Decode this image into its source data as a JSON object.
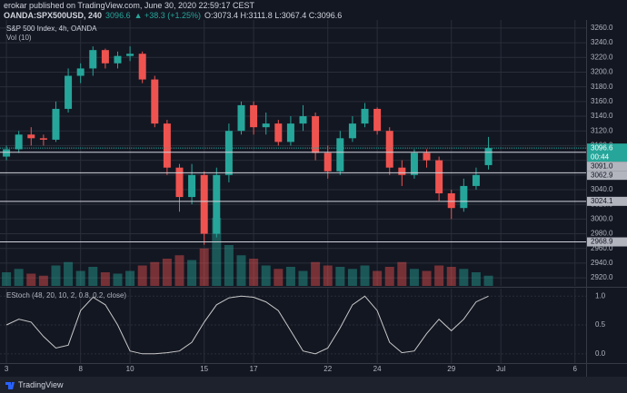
{
  "header": {
    "publisher": "erokar published on TradingView.com, June 30, 2020 22:59:17 CEST",
    "symbol": "OANDA:SPX500USD, 240",
    "change": "▲ +38.3 (+1.25%)",
    "ohlc": "O:3073.4 H:3111.8 L:3067.4 C:3096.6"
  },
  "chart_data": [
    {
      "type": "candlestick",
      "title": "S&P 500 Index, 4h, OANDA",
      "x": [
        0,
        0.5,
        1,
        1.5,
        2,
        2.5,
        3,
        3.5,
        4,
        4.5,
        5,
        5.5,
        6,
        6.5,
        7,
        7.5,
        8,
        8.5,
        9,
        9.5,
        10,
        10.5,
        11,
        11.5,
        12,
        12.5,
        13,
        13.5,
        14,
        14.5,
        15,
        15.5,
        16,
        16.5,
        17,
        17.5,
        18,
        18.5,
        19,
        19.5
      ],
      "open": [
        3085,
        3095,
        3115,
        3110,
        3108,
        3150,
        3195,
        3205,
        3230,
        3212,
        3222,
        3225,
        3190,
        3130,
        3070,
        3030,
        3060,
        2980,
        3060,
        3120,
        3155,
        3125,
        3130,
        3105,
        3130,
        3140,
        3090,
        3065,
        3110,
        3130,
        3150,
        3120,
        3070,
        3060,
        3090,
        3080,
        3035,
        3015,
        3045,
        3073.4
      ],
      "high": [
        3100,
        3120,
        3125,
        3115,
        3160,
        3205,
        3212,
        3235,
        3232,
        3228,
        3235,
        3228,
        3195,
        3135,
        3075,
        3075,
        3065,
        3070,
        3130,
        3160,
        3160,
        3145,
        3135,
        3140,
        3155,
        3145,
        3100,
        3120,
        3140,
        3158,
        3152,
        3125,
        3080,
        3095,
        3095,
        3085,
        3040,
        3055,
        3070,
        3111.8
      ],
      "low": [
        3080,
        3090,
        3100,
        3100,
        3105,
        3145,
        3185,
        3195,
        3205,
        3205,
        3215,
        3185,
        3125,
        3060,
        3010,
        3020,
        2965,
        2975,
        3050,
        3115,
        3115,
        3115,
        3100,
        3100,
        3120,
        3080,
        3055,
        3060,
        3105,
        3125,
        3115,
        3060,
        3045,
        3055,
        3070,
        3025,
        3000,
        3010,
        3040,
        3067.4
      ],
      "close": [
        3095,
        3115,
        3110,
        3108,
        3150,
        3195,
        3205,
        3230,
        3212,
        3222,
        3225,
        3190,
        3130,
        3070,
        3030,
        3060,
        2980,
        3060,
        3120,
        3155,
        3125,
        3130,
        3105,
        3130,
        3140,
        3090,
        3065,
        3110,
        3130,
        3150,
        3120,
        3070,
        3060,
        3090,
        3080,
        3035,
        3015,
        3045,
        3060,
        3096.6
      ],
      "up_color": "#26a69a",
      "down_color": "#ef5350",
      "xlim": [
        -0.26,
        23.45
      ],
      "xticks": [
        {
          "value": 0,
          "label": "3"
        },
        {
          "value": 3,
          "label": "8"
        },
        {
          "value": 5,
          "label": "10"
        },
        {
          "value": 8,
          "label": "15"
        },
        {
          "value": 10,
          "label": "17"
        },
        {
          "value": 13,
          "label": "22"
        },
        {
          "value": 15,
          "label": "24"
        },
        {
          "value": 18,
          "label": "29"
        },
        {
          "value": 20,
          "label": "Jul"
        },
        {
          "value": 23,
          "label": "6"
        }
      ],
      "ylim": [
        2909,
        3271
      ],
      "yticks": [
        {
          "value": 2920,
          "label": "2920.0"
        },
        {
          "value": 2940,
          "label": "2940.0"
        },
        {
          "value": 2960,
          "label": "2960.0"
        },
        {
          "value": 2980,
          "label": "2980.0"
        },
        {
          "value": 3000,
          "label": "3000.0"
        },
        {
          "value": 3020,
          "label": "3020.0"
        },
        {
          "value": 3040,
          "label": "3040.0"
        },
        {
          "value": 3060,
          "label": "3060.0"
        },
        {
          "value": 3080,
          "label": "3080.0"
        },
        {
          "value": 3100,
          "label": "3100.0"
        },
        {
          "value": 3120,
          "label": "3120.0"
        },
        {
          "value": 3140,
          "label": "3140.0"
        },
        {
          "value": 3160,
          "label": "3160.0"
        },
        {
          "value": 3180,
          "label": "3180.0"
        },
        {
          "value": 3200,
          "label": "3200.0"
        },
        {
          "value": 3220,
          "label": "3220.0"
        },
        {
          "value": 3240,
          "label": "3240.0"
        },
        {
          "value": 3260,
          "label": "3260.0"
        }
      ],
      "countdown": "00:44",
      "levels": [
        {
          "value": 3091.0,
          "label": "3091.0"
        },
        {
          "value": 3062.9,
          "label": "3062.9"
        },
        {
          "value": 3024.1,
          "label": "3024.1"
        },
        {
          "value": 2968.9,
          "label": "2968.9"
        }
      ],
      "grid": true
    },
    {
      "type": "volume",
      "title": "Vol (10)",
      "values": [
        20,
        25,
        18,
        15,
        30,
        35,
        22,
        28,
        20,
        18,
        22,
        30,
        35,
        40,
        45,
        38,
        55,
        100,
        60,
        45,
        40,
        30,
        25,
        28,
        22,
        35,
        30,
        28,
        25,
        30,
        22,
        28,
        35,
        25,
        22,
        30,
        28,
        25,
        20,
        15
      ]
    },
    {
      "type": "line",
      "title": "EStoch (48, 20, 10, 2, 0.8, 0.2, close)",
      "color": "#c8c8c8",
      "values": [
        0.5,
        0.6,
        0.55,
        0.3,
        0.1,
        0.15,
        0.75,
        0.98,
        0.85,
        0.5,
        0.05,
        0,
        0,
        0.02,
        0.05,
        0.2,
        0.55,
        0.85,
        0.97,
        1,
        0.98,
        0.9,
        0.75,
        0.4,
        0.05,
        0,
        0.1,
        0.45,
        0.85,
        1,
        0.75,
        0.2,
        0.02,
        0.05,
        0.35,
        0.6,
        0.4,
        0.6,
        0.9,
        1
      ],
      "ylim": [
        -0.16,
        1.13
      ],
      "yticks": [
        {
          "value": 0,
          "label": "0.0"
        },
        {
          "value": 0.5,
          "label": "0.5"
        },
        {
          "value": 1,
          "label": "1.0"
        }
      ]
    }
  ],
  "footer": {
    "brand": "TradingView"
  }
}
